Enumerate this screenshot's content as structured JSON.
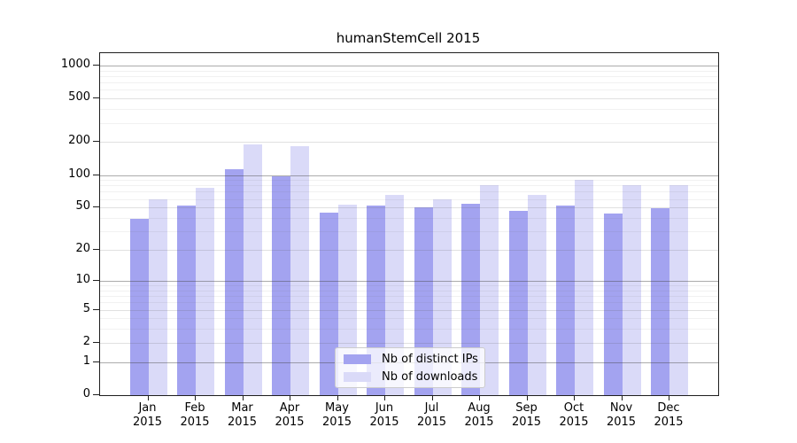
{
  "chart_data": {
    "type": "bar",
    "title": "humanStemCell 2015",
    "categories": [
      "Jan",
      "Feb",
      "Mar",
      "Apr",
      "May",
      "Jun",
      "Jul",
      "Aug",
      "Sep",
      "Oct",
      "Nov",
      "Dec"
    ],
    "x_year_label": "2015",
    "series": [
      {
        "name": "Nb of distinct IPs",
        "color": "#a3a3f0",
        "values": [
          39,
          52,
          114,
          98,
          45,
          52,
          50,
          54,
          47,
          52,
          44,
          49
        ]
      },
      {
        "name": "Nb of downloads",
        "color": "#dadaf8",
        "values": [
          60,
          76,
          189,
          183,
          53,
          65,
          60,
          81,
          66,
          90,
          80,
          80
        ]
      }
    ],
    "yticks": [
      0,
      1,
      2,
      5,
      10,
      20,
      50,
      100,
      200,
      500,
      1000
    ],
    "yscale": "log10(1+v)",
    "ylim": [
      0,
      1300
    ],
    "grid": true,
    "legend_position": "inside-bottom-center"
  }
}
